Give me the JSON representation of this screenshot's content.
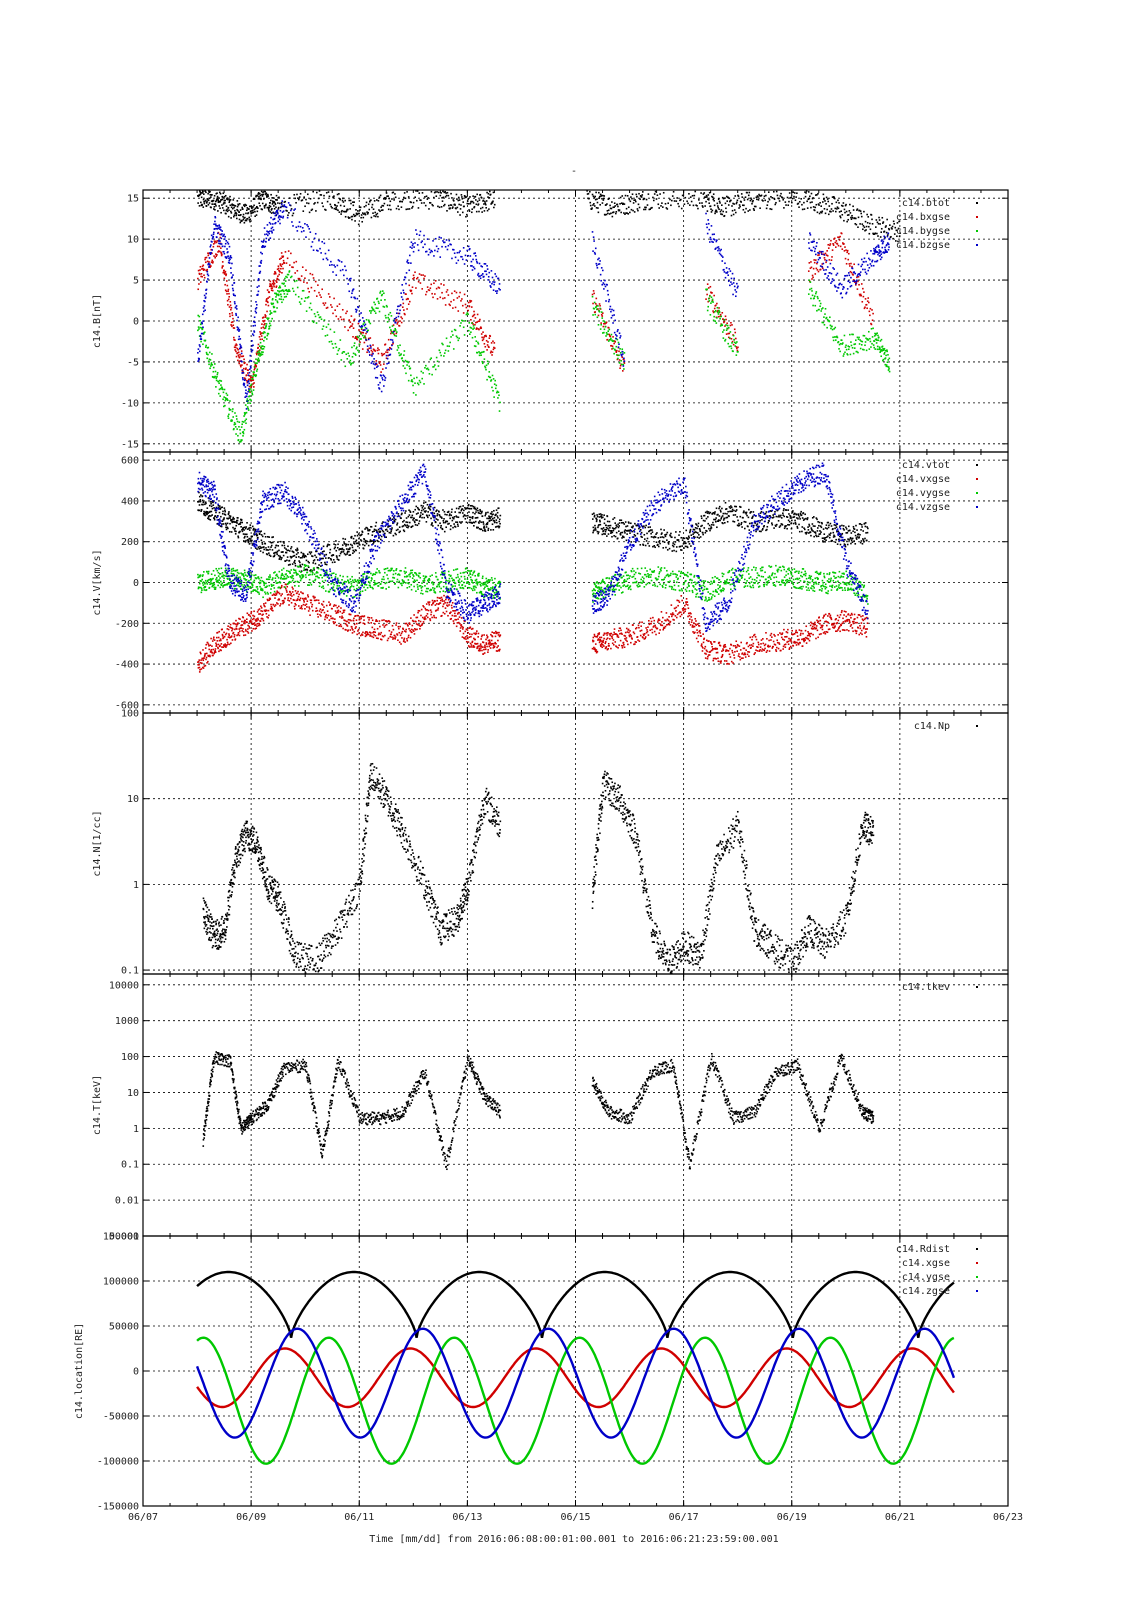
{
  "title": "-",
  "x_axis": {
    "label": "Time [mm/dd]  from 2016:06:08:00:01:00.001  to  2016:06:21:23:59:00.001",
    "range": [
      "06/07",
      "06/23"
    ],
    "tick_labels": [
      "06/07",
      "06/09",
      "06/11",
      "06/13",
      "06/15",
      "06/17",
      "06/19",
      "06/21",
      "06/23"
    ],
    "tick_positions_days": [
      0,
      2,
      4,
      6,
      8,
      10,
      12,
      14,
      16
    ]
  },
  "colors": {
    "black": "#000000",
    "red": "#d00000",
    "green": "#00c800",
    "blue": "#0000c8"
  },
  "chart_data": [
    {
      "type": "scatter",
      "ylabel": "c14.B[nT]",
      "yscale": "linear",
      "ylim": [
        -16,
        16
      ],
      "y_ticks": [
        15,
        10,
        5,
        0,
        -5,
        -10,
        -15
      ],
      "legend": [
        "c14.btot",
        "c14.bxgse",
        "c14.bygse",
        "c14.bzgse"
      ],
      "legend_position": "top-right",
      "series": [
        {
          "name": "c14.btot",
          "color": "black",
          "x": [
            1.0,
            1.3,
            1.6,
            1.9,
            2.2,
            2.5,
            3.5,
            4.0,
            4.6,
            5.5,
            6.0,
            6.5,
            8.2,
            8.7,
            9.3,
            10.3,
            10.8,
            11.4,
            12.2,
            12.8,
            13.4,
            14.0
          ],
          "y": [
            15,
            15,
            14,
            13,
            15,
            14,
            15,
            13,
            15,
            15,
            14,
            15,
            15,
            14,
            15,
            15,
            14,
            15,
            15,
            14,
            12,
            11
          ]
        },
        {
          "name": "c14.bxgse",
          "color": "red",
          "x": [
            1.0,
            1.4,
            1.7,
            2.0,
            2.3,
            2.6,
            3.8,
            4.4,
            5.0,
            6.0,
            6.5,
            8.3,
            8.9,
            10.4,
            11.0,
            12.3,
            12.9,
            13.5
          ],
          "y": [
            5,
            10,
            -3,
            -8,
            3,
            8,
            0,
            -5,
            5,
            2,
            -4,
            3,
            -6,
            4,
            -3,
            6,
            10,
            0
          ]
        },
        {
          "name": "c14.bygse",
          "color": "green",
          "x": [
            1.0,
            1.4,
            1.8,
            2.1,
            2.4,
            2.7,
            3.8,
            4.4,
            5.0,
            6.0,
            6.6,
            8.3,
            8.9,
            10.4,
            11.0,
            12.3,
            12.9,
            13.5,
            13.8
          ],
          "y": [
            0,
            -8,
            -14,
            -5,
            2,
            5,
            -5,
            3,
            -8,
            0,
            -10,
            2,
            -5,
            3,
            -4,
            4,
            -3,
            -2,
            -5
          ]
        },
        {
          "name": "c14.bzgse",
          "color": "blue",
          "x": [
            1.0,
            1.3,
            1.6,
            1.9,
            2.2,
            2.6,
            3.8,
            4.4,
            5.0,
            6.0,
            6.6,
            8.3,
            8.9,
            10.4,
            11.0,
            12.3,
            12.9,
            13.5,
            13.8
          ],
          "y": [
            -5,
            12,
            8,
            -10,
            10,
            14,
            5,
            -8,
            10,
            8,
            4,
            10,
            -5,
            12,
            3,
            10,
            4,
            8,
            10
          ]
        }
      ]
    },
    {
      "type": "scatter",
      "ylabel": "c14.V[km/s]",
      "yscale": "linear",
      "ylim": [
        -640,
        640
      ],
      "y_ticks": [
        600,
        400,
        200,
        0,
        -200,
        -400,
        -600
      ],
      "legend": [
        "c14.vtot",
        "c14.vxgse",
        "c14.vygse",
        "c14.vzgse"
      ],
      "legend_position": "top-right",
      "series": [
        {
          "name": "c14.vtot",
          "color": "black",
          "x": [
            1.0,
            1.3,
            1.6,
            1.9,
            2.2,
            2.6,
            3.0,
            3.5,
            3.9,
            4.3,
            4.8,
            5.2,
            5.6,
            6.0,
            6.3,
            6.6,
            8.3,
            8.6,
            9.0,
            9.5,
            10.0,
            10.4,
            10.8,
            11.3,
            11.8,
            12.2,
            12.6,
            13.0,
            13.4
          ],
          "y": [
            400,
            350,
            300,
            250,
            200,
            150,
            100,
            150,
            200,
            250,
            300,
            350,
            300,
            350,
            300,
            320,
            300,
            280,
            250,
            220,
            200,
            300,
            350,
            300,
            320,
            300,
            250,
            230,
            250
          ]
        },
        {
          "name": "c14.vxgse",
          "color": "red",
          "x": [
            1.0,
            1.3,
            1.6,
            1.9,
            2.2,
            2.6,
            3.0,
            3.5,
            3.9,
            4.3,
            4.8,
            5.2,
            5.6,
            6.0,
            6.3,
            6.6,
            8.3,
            8.6,
            9.0,
            9.5,
            10.0,
            10.4,
            10.8,
            11.3,
            11.8,
            12.2,
            12.6,
            13.0,
            13.4
          ],
          "y": [
            -400,
            -300,
            -250,
            -200,
            -150,
            -50,
            -100,
            -150,
            -200,
            -220,
            -250,
            -150,
            -100,
            -260,
            -300,
            -280,
            -300,
            -280,
            -260,
            -200,
            -100,
            -320,
            -350,
            -300,
            -280,
            -260,
            -200,
            -180,
            -220
          ]
        },
        {
          "name": "c14.vygse",
          "color": "green",
          "x": [
            1.0,
            1.3,
            1.6,
            1.9,
            2.2,
            2.6,
            3.0,
            3.5,
            3.9,
            4.3,
            4.8,
            5.2,
            5.6,
            6.0,
            6.3,
            6.6,
            8.3,
            8.6,
            9.0,
            9.5,
            10.0,
            10.4,
            10.8,
            11.3,
            11.8,
            12.2,
            12.6,
            13.0,
            13.4
          ],
          "y": [
            0,
            20,
            30,
            10,
            -20,
            30,
            40,
            0,
            -20,
            20,
            30,
            -10,
            10,
            30,
            -20,
            -30,
            -50,
            -20,
            20,
            30,
            10,
            -40,
            20,
            30,
            40,
            20,
            0,
            10,
            -60
          ]
        },
        {
          "name": "c14.vzgse",
          "color": "blue",
          "x": [
            1.0,
            1.3,
            1.6,
            1.9,
            2.2,
            2.6,
            3.0,
            3.5,
            3.9,
            4.3,
            4.8,
            5.2,
            5.6,
            6.0,
            6.3,
            6.6,
            8.3,
            8.6,
            9.0,
            9.5,
            10.0,
            10.4,
            10.8,
            11.3,
            11.8,
            12.2,
            12.6,
            13.0,
            13.4
          ],
          "y": [
            500,
            450,
            0,
            -50,
            400,
            450,
            300,
            0,
            -100,
            200,
            400,
            550,
            -20,
            -150,
            -100,
            -50,
            -100,
            -60,
            200,
            400,
            480,
            -200,
            -100,
            300,
            420,
            500,
            550,
            100,
            -150
          ]
        }
      ]
    },
    {
      "type": "scatter",
      "ylabel": "c14.N[1/cc]",
      "yscale": "log",
      "ylim": [
        0.09,
        100
      ],
      "y_ticks": [
        100,
        10,
        1,
        0.1
      ],
      "legend": [
        "c14.Np"
      ],
      "legend_position": "top-right",
      "series": [
        {
          "name": "c14.Np",
          "color": "black",
          "x": [
            1.1,
            1.3,
            1.5,
            1.7,
            1.9,
            2.1,
            2.3,
            2.5,
            2.8,
            3.2,
            3.6,
            4.0,
            4.2,
            4.5,
            4.8,
            5.2,
            5.5,
            5.8,
            6.0,
            6.3,
            6.6,
            8.3,
            8.5,
            8.8,
            9.1,
            9.4,
            9.7,
            10.0,
            10.3,
            10.6,
            11.0,
            11.3,
            11.6,
            12.0,
            12.3,
            12.6,
            13.0,
            13.3,
            13.5
          ],
          "y": [
            0.5,
            0.25,
            0.3,
            2,
            4,
            3,
            1,
            0.7,
            0.15,
            0.13,
            0.3,
            1,
            20,
            10,
            4,
            1,
            0.3,
            0.4,
            1,
            10,
            5,
            0.8,
            15,
            10,
            4,
            0.3,
            0.12,
            0.2,
            0.15,
            2,
            5,
            0.3,
            0.2,
            0.12,
            0.3,
            0.2,
            0.4,
            5,
            4
          ]
        }
      ]
    },
    {
      "type": "scatter",
      "ylabel": "c14.T[keV]",
      "yscale": "log",
      "ylim": [
        0.001,
        20000
      ],
      "y_ticks": [
        10000,
        1000,
        100,
        10,
        1,
        0.1,
        0.01,
        0.001
      ],
      "legend": [
        "c14.tkev"
      ],
      "legend_position": "top-right",
      "series": [
        {
          "name": "c14.tkev",
          "color": "black",
          "x": [
            1.1,
            1.3,
            1.6,
            1.8,
            2.0,
            2.3,
            2.6,
            3.0,
            3.3,
            3.6,
            4.0,
            4.4,
            4.8,
            5.2,
            5.6,
            6.0,
            6.3,
            6.6,
            8.3,
            8.6,
            9.0,
            9.4,
            9.8,
            10.1,
            10.5,
            10.9,
            11.3,
            11.7,
            12.1,
            12.5,
            12.9,
            13.3,
            13.5
          ],
          "y": [
            0.5,
            100,
            80,
            1,
            2,
            5,
            50,
            60,
            0.2,
            80,
            2,
            2,
            3,
            40,
            0.1,
            100,
            8,
            3,
            20,
            3,
            2,
            40,
            60,
            0.1,
            100,
            2,
            3,
            40,
            60,
            1,
            100,
            3,
            2
          ]
        }
      ]
    },
    {
      "type": "line",
      "ylabel": "c14.location[RE]",
      "yscale": "linear",
      "ylim": [
        -150000,
        150000
      ],
      "y_ticks": [
        150000,
        100000,
        50000,
        0,
        -50000,
        -100000,
        -150000
      ],
      "legend": [
        "c14.Rdist",
        "c14.xgse",
        "c14.ygse",
        "c14.zgse"
      ],
      "legend_position": "top-right",
      "period_days": 2.32,
      "series": [
        {
          "name": "c14.Rdist",
          "color": "black",
          "description_values": {
            "max": 110000,
            "min": 37000
          }
        },
        {
          "name": "c14.xgse",
          "color": "red",
          "description_values": {
            "max": 25000,
            "min": -40000
          }
        },
        {
          "name": "c14.ygse",
          "color": "green",
          "description_values": {
            "max": 37000,
            "min": -103000
          }
        },
        {
          "name": "c14.zgse",
          "color": "blue",
          "description_values": {
            "max": 47000,
            "min": -74000
          }
        }
      ]
    }
  ]
}
